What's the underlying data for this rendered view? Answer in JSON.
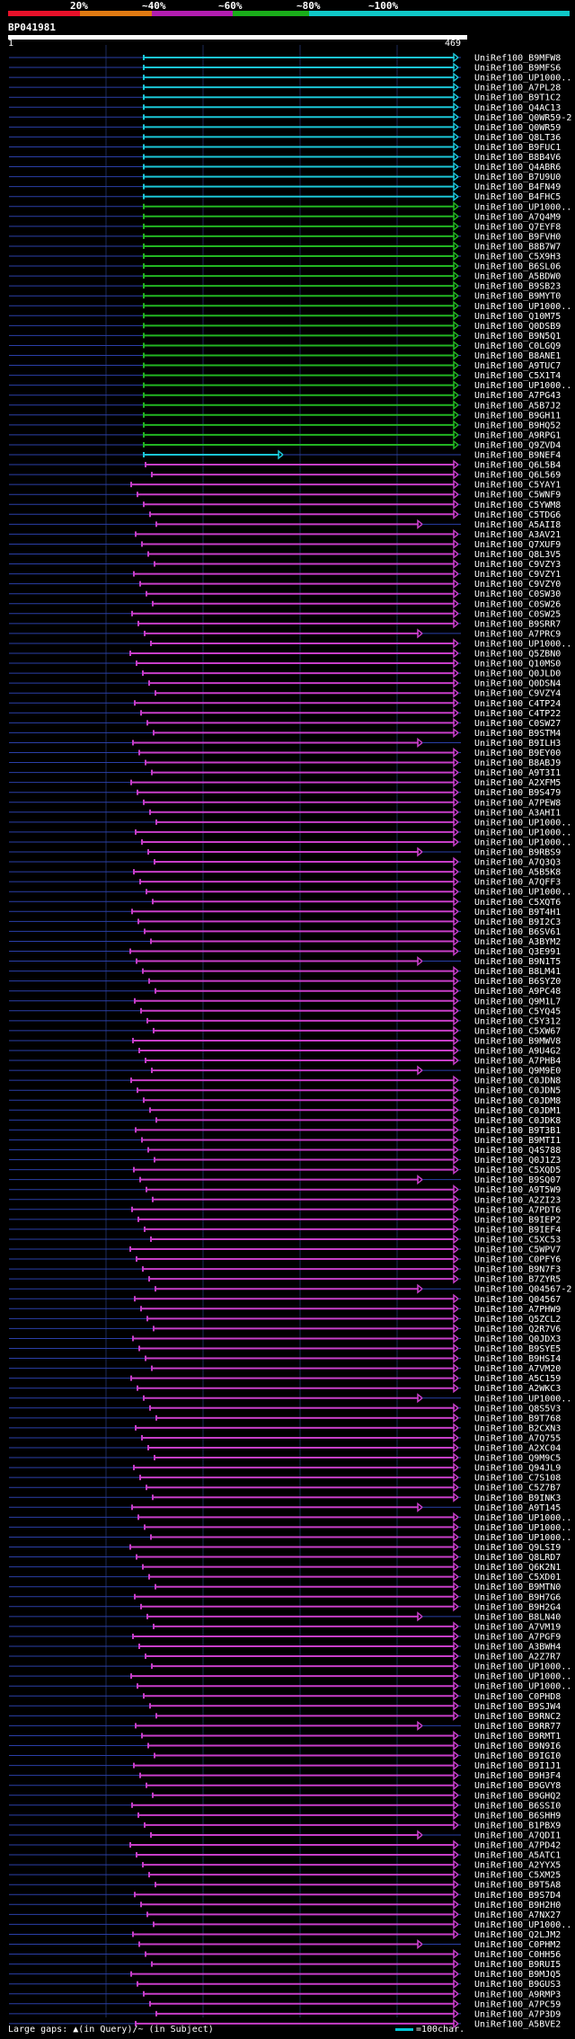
{
  "legend": {
    "percent_labels": [
      "20%",
      "~40%",
      "~60%",
      "~80%",
      "~100%"
    ],
    "colors": [
      "#e8112a",
      "#e07a12",
      "#b21eb0",
      "#1aad1a",
      "#0fc7c7"
    ]
  },
  "query": {
    "id": "BP041981",
    "start": "1",
    "end": "469"
  },
  "chart_data": {
    "type": "alignment-overview",
    "query_length": 469,
    "hit_colors": {
      "cyan": "#1bc5d6",
      "green": "#22b522",
      "magenta": "#c73ec8"
    },
    "hits": [
      {
        "label": "UniRef100_B9MFW8",
        "color": "cyan"
      },
      {
        "label": "UniRef100_B9MFS6",
        "color": "cyan"
      },
      {
        "label": "UniRef100_UP1000..",
        "color": "cyan"
      },
      {
        "label": "UniRef100_A7PL28",
        "color": "cyan"
      },
      {
        "label": "UniRef100_B9T1C2",
        "color": "cyan"
      },
      {
        "label": "UniRef100_Q4AC13",
        "color": "cyan"
      },
      {
        "label": "UniRef100_Q0WR59-2",
        "color": "cyan"
      },
      {
        "label": "UniRef100_Q0WR59",
        "color": "cyan"
      },
      {
        "label": "UniRef100_Q8LT36",
        "color": "cyan"
      },
      {
        "label": "UniRef100_B9FUC1",
        "color": "cyan"
      },
      {
        "label": "UniRef100_B8B4V6",
        "color": "cyan"
      },
      {
        "label": "UniRef100_Q4ABR6",
        "color": "cyan"
      },
      {
        "label": "UniRef100_B7U9U0",
        "color": "cyan"
      },
      {
        "label": "UniRef100_B4FN49",
        "color": "cyan"
      },
      {
        "label": "UniRef100_B4FHC5",
        "color": "cyan"
      },
      {
        "label": "UniRef100_UP1000..",
        "color": "green"
      },
      {
        "label": "UniRef100_A7Q4M9",
        "color": "green"
      },
      {
        "label": "UniRef100_Q7EYF8",
        "color": "green"
      },
      {
        "label": "UniRef100_B9FVH0",
        "color": "green"
      },
      {
        "label": "UniRef100_B8B7W7",
        "color": "green"
      },
      {
        "label": "UniRef100_C5X9H3",
        "color": "green"
      },
      {
        "label": "UniRef100_B6SL06",
        "color": "green"
      },
      {
        "label": "UniRef100_A5BDW0",
        "color": "green"
      },
      {
        "label": "UniRef100_B9SB23",
        "color": "green"
      },
      {
        "label": "UniRef100_B9MYT0",
        "color": "green"
      },
      {
        "label": "UniRef100_UP1000..",
        "color": "green"
      },
      {
        "label": "UniRef100_Q10M75",
        "color": "green"
      },
      {
        "label": "UniRef100_Q0DSB9",
        "color": "green"
      },
      {
        "label": "UniRef100_B9N5Q1",
        "color": "green"
      },
      {
        "label": "UniRef100_C0LGQ9",
        "color": "green"
      },
      {
        "label": "UniRef100_B8ANE1",
        "color": "green"
      },
      {
        "label": "UniRef100_A9TUC7",
        "color": "green"
      },
      {
        "label": "UniRef100_C5X1T4",
        "color": "green"
      },
      {
        "label": "UniRef100_UP1000..",
        "color": "green"
      },
      {
        "label": "UniRef100_A7PG43",
        "color": "green"
      },
      {
        "label": "UniRef100_A5B7J2",
        "color": "green"
      },
      {
        "label": "UniRef100_B9GH11",
        "color": "green"
      },
      {
        "label": "UniRef100_B9HQ52",
        "color": "green"
      },
      {
        "label": "UniRef100_A9RPG1",
        "color": "green"
      },
      {
        "label": "UniRef100_Q9ZVD4",
        "color": "green"
      },
      {
        "label": "UniRef100_B9NEF4",
        "color": "cyan"
      },
      {
        "label": "UniRef100_Q6L5B4",
        "color": "magenta"
      },
      {
        "label": "UniRef100_Q6L569",
        "color": "magenta"
      },
      {
        "label": "UniRef100_C5YAY1",
        "color": "magenta"
      },
      {
        "label": "UniRef100_C5WNF9",
        "color": "magenta"
      },
      {
        "label": "UniRef100_C5YWM8",
        "color": "magenta"
      },
      {
        "label": "UniRef100_C5TDG6",
        "color": "magenta"
      },
      {
        "label": "UniRef100_A5AII8",
        "color": "magenta"
      },
      {
        "label": "UniRef100_A3AV21",
        "color": "magenta"
      },
      {
        "label": "UniRef100_Q7XUF9",
        "color": "magenta"
      },
      {
        "label": "UniRef100_Q8L3V5",
        "color": "magenta"
      },
      {
        "label": "UniRef100_C9VZY3",
        "color": "magenta"
      },
      {
        "label": "UniRef100_C9VZY1",
        "color": "magenta"
      },
      {
        "label": "UniRef100_C9VZY0",
        "color": "magenta"
      },
      {
        "label": "UniRef100_C0SW30",
        "color": "magenta"
      },
      {
        "label": "UniRef100_C0SW26",
        "color": "magenta"
      },
      {
        "label": "UniRef100_C0SW25",
        "color": "magenta"
      },
      {
        "label": "UniRef100_B9SRR7",
        "color": "magenta"
      },
      {
        "label": "UniRef100_A7PRC9",
        "color": "magenta"
      },
      {
        "label": "UniRef100_UP1000..",
        "color": "magenta"
      },
      {
        "label": "UniRef100_Q5ZBN0",
        "color": "magenta"
      },
      {
        "label": "UniRef100_Q10MS0",
        "color": "magenta"
      },
      {
        "label": "UniRef100_Q0JLD0",
        "color": "magenta"
      },
      {
        "label": "UniRef100_Q0DSN4",
        "color": "magenta"
      },
      {
        "label": "UniRef100_C9VZY4",
        "color": "magenta"
      },
      {
        "label": "UniRef100_C4TP24",
        "color": "magenta"
      },
      {
        "label": "UniRef100_C4TP22",
        "color": "magenta"
      },
      {
        "label": "UniRef100_C0SW27",
        "color": "magenta"
      },
      {
        "label": "UniRef100_B9STM4",
        "color": "magenta"
      },
      {
        "label": "UniRef100_B9ILH3",
        "color": "magenta"
      },
      {
        "label": "UniRef100_B9EY00",
        "color": "magenta"
      },
      {
        "label": "UniRef100_B8ABJ9",
        "color": "magenta"
      },
      {
        "label": "UniRef100_A9T3I1",
        "color": "magenta"
      },
      {
        "label": "UniRef100_A2XFM5",
        "color": "magenta"
      },
      {
        "label": "UniRef100_B9S479",
        "color": "magenta"
      },
      {
        "label": "UniRef100_A7PEW8",
        "color": "magenta"
      },
      {
        "label": "UniRef100_A3AHI1",
        "color": "magenta"
      },
      {
        "label": "UniRef100_UP1000..",
        "color": "magenta"
      },
      {
        "label": "UniRef100_UP1000..",
        "color": "magenta"
      },
      {
        "label": "UniRef100_UP1000..",
        "color": "magenta"
      },
      {
        "label": "UniRef100_B9RBS9",
        "color": "magenta"
      },
      {
        "label": "UniRef100_A7Q3Q3",
        "color": "magenta"
      },
      {
        "label": "UniRef100_A5B5K8",
        "color": "magenta"
      },
      {
        "label": "UniRef100_A7QFF3",
        "color": "magenta"
      },
      {
        "label": "UniRef100_UP1000..",
        "color": "magenta"
      },
      {
        "label": "UniRef100_C5XQT6",
        "color": "magenta"
      },
      {
        "label": "UniRef100_B9T4H1",
        "color": "magenta"
      },
      {
        "label": "UniRef100_B9I2C3",
        "color": "magenta"
      },
      {
        "label": "UniRef100_B6SV61",
        "color": "magenta"
      },
      {
        "label": "UniRef100_A3BYM2",
        "color": "magenta"
      },
      {
        "label": "UniRef100_Q3E991",
        "color": "magenta"
      },
      {
        "label": "UniRef100_B9N1T5",
        "color": "magenta"
      },
      {
        "label": "UniRef100_B8LM41",
        "color": "magenta"
      },
      {
        "label": "UniRef100_B6SYZ0",
        "color": "magenta"
      },
      {
        "label": "UniRef100_A9PC48",
        "color": "magenta"
      },
      {
        "label": "UniRef100_Q9M1L7",
        "color": "magenta"
      },
      {
        "label": "UniRef100_C5YQ45",
        "color": "magenta"
      },
      {
        "label": "UniRef100_C5Y312",
        "color": "magenta"
      },
      {
        "label": "UniRef100_C5XW67",
        "color": "magenta"
      },
      {
        "label": "UniRef100_B9MWV8",
        "color": "magenta"
      },
      {
        "label": "UniRef100_A9U4G2",
        "color": "magenta"
      },
      {
        "label": "UniRef100_A7PHB4",
        "color": "magenta"
      },
      {
        "label": "UniRef100_Q9M9E0",
        "color": "magenta"
      },
      {
        "label": "UniRef100_C0JDN8",
        "color": "magenta"
      },
      {
        "label": "UniRef100_C0JDN5",
        "color": "magenta"
      },
      {
        "label": "UniRef100_C0JDM8",
        "color": "magenta"
      },
      {
        "label": "UniRef100_C0JDM1",
        "color": "magenta"
      },
      {
        "label": "UniRef100_C0JDK8",
        "color": "magenta"
      },
      {
        "label": "UniRef100_B9T3B1",
        "color": "magenta"
      },
      {
        "label": "UniRef100_B9MTI1",
        "color": "magenta"
      },
      {
        "label": "UniRef100_Q4S788",
        "color": "magenta"
      },
      {
        "label": "UniRef100_Q0J1Z3",
        "color": "magenta"
      },
      {
        "label": "UniRef100_C5XQD5",
        "color": "magenta"
      },
      {
        "label": "UniRef100_B9SQ07",
        "color": "magenta"
      },
      {
        "label": "UniRef100_A9T5W9",
        "color": "magenta"
      },
      {
        "label": "UniRef100_A2ZI23",
        "color": "magenta"
      },
      {
        "label": "UniRef100_A7PDT6",
        "color": "magenta"
      },
      {
        "label": "UniRef100_B9IEP2",
        "color": "magenta"
      },
      {
        "label": "UniRef100_B9IEF4",
        "color": "magenta"
      },
      {
        "label": "UniRef100_C5XC53",
        "color": "magenta"
      },
      {
        "label": "UniRef100_C5WPV7",
        "color": "magenta"
      },
      {
        "label": "UniRef100_C0PFY6",
        "color": "magenta"
      },
      {
        "label": "UniRef100_B9N7F3",
        "color": "magenta"
      },
      {
        "label": "UniRef100_B7ZYR5",
        "color": "magenta"
      },
      {
        "label": "UniRef100_Q04567-2",
        "color": "magenta"
      },
      {
        "label": "UniRef100_Q04567",
        "color": "magenta"
      },
      {
        "label": "UniRef100_A7PHW9",
        "color": "magenta"
      },
      {
        "label": "UniRef100_Q5ZCL2",
        "color": "magenta"
      },
      {
        "label": "UniRef100_Q2R7V6",
        "color": "magenta"
      },
      {
        "label": "UniRef100_Q0JDX3",
        "color": "magenta"
      },
      {
        "label": "UniRef100_B9SYE5",
        "color": "magenta"
      },
      {
        "label": "UniRef100_B9HSI4",
        "color": "magenta"
      },
      {
        "label": "UniRef100_A7VM20",
        "color": "magenta"
      },
      {
        "label": "UniRef100_A5C159",
        "color": "magenta"
      },
      {
        "label": "UniRef100_A2WKC3",
        "color": "magenta"
      },
      {
        "label": "UniRef100_UP1000..",
        "color": "magenta"
      },
      {
        "label": "UniRef100_Q8S5V3",
        "color": "magenta"
      },
      {
        "label": "UniRef100_B9T768",
        "color": "magenta"
      },
      {
        "label": "UniRef100_B2CXN3",
        "color": "magenta"
      },
      {
        "label": "UniRef100_A7Q755",
        "color": "magenta"
      },
      {
        "label": "UniRef100_A2XC04",
        "color": "magenta"
      },
      {
        "label": "UniRef100_Q9M9C5",
        "color": "magenta"
      },
      {
        "label": "UniRef100_Q94JL9",
        "color": "magenta"
      },
      {
        "label": "UniRef100_C7S108",
        "color": "magenta"
      },
      {
        "label": "UniRef100_C5Z7B7",
        "color": "magenta"
      },
      {
        "label": "UniRef100_B9INK3",
        "color": "magenta"
      },
      {
        "label": "UniRef100_A9T145",
        "color": "magenta"
      },
      {
        "label": "UniRef100_UP1000..",
        "color": "magenta"
      },
      {
        "label": "UniRef100_UP1000..",
        "color": "magenta"
      },
      {
        "label": "UniRef100_UP1000..",
        "color": "magenta"
      },
      {
        "label": "UniRef100_Q9LSI9",
        "color": "magenta"
      },
      {
        "label": "UniRef100_Q8LRD7",
        "color": "magenta"
      },
      {
        "label": "UniRef100_Q6K2N1",
        "color": "magenta"
      },
      {
        "label": "UniRef100_C5XD01",
        "color": "magenta"
      },
      {
        "label": "UniRef100_B9MTN0",
        "color": "magenta"
      },
      {
        "label": "UniRef100_B9H7G6",
        "color": "magenta"
      },
      {
        "label": "UniRef100_B9H2G4",
        "color": "magenta"
      },
      {
        "label": "UniRef100_B8LN40",
        "color": "magenta"
      },
      {
        "label": "UniRef100_A7VM19",
        "color": "magenta"
      },
      {
        "label": "UniRef100_A7PGF9",
        "color": "magenta"
      },
      {
        "label": "UniRef100_A3BWH4",
        "color": "magenta"
      },
      {
        "label": "UniRef100_A2Z7R7",
        "color": "magenta"
      },
      {
        "label": "UniRef100_UP1000..",
        "color": "magenta"
      },
      {
        "label": "UniRef100_UP1000..",
        "color": "magenta"
      },
      {
        "label": "UniRef100_UP1000..",
        "color": "magenta"
      },
      {
        "label": "UniRef100_C0PHD8",
        "color": "magenta"
      },
      {
        "label": "UniRef100_B9SJW4",
        "color": "magenta"
      },
      {
        "label": "UniRef100_B9RNC2",
        "color": "magenta"
      },
      {
        "label": "UniRef100_B9RR77",
        "color": "magenta"
      },
      {
        "label": "UniRef100_B9RMT1",
        "color": "magenta"
      },
      {
        "label": "UniRef100_B9N9I6",
        "color": "magenta"
      },
      {
        "label": "UniRef100_B9IGI0",
        "color": "magenta"
      },
      {
        "label": "UniRef100_B9I1J1",
        "color": "magenta"
      },
      {
        "label": "UniRef100_B9H3F4",
        "color": "magenta"
      },
      {
        "label": "UniRef100_B9GVY8",
        "color": "magenta"
      },
      {
        "label": "UniRef100_B9GHQ2",
        "color": "magenta"
      },
      {
        "label": "UniRef100_B6SSI0",
        "color": "magenta"
      },
      {
        "label": "UniRef100_B6SHH9",
        "color": "magenta"
      },
      {
        "label": "UniRef100_B1PBX9",
        "color": "magenta"
      },
      {
        "label": "UniRef100_A7QDI1",
        "color": "magenta"
      },
      {
        "label": "UniRef100_A7PD42",
        "color": "magenta"
      },
      {
        "label": "UniRef100_A5ATC1",
        "color": "magenta"
      },
      {
        "label": "UniRef100_A2YYX5",
        "color": "magenta"
      },
      {
        "label": "UniRef100_C5XM25",
        "color": "magenta"
      },
      {
        "label": "UniRef100_B9T5A8",
        "color": "magenta"
      },
      {
        "label": "UniRef100_B9S7D4",
        "color": "magenta"
      },
      {
        "label": "UniRef100_B9H2H0",
        "color": "magenta"
      },
      {
        "label": "UniRef100_A7NX27",
        "color": "magenta"
      },
      {
        "label": "UniRef100_UP1000..",
        "color": "magenta"
      },
      {
        "label": "UniRef100_Q2LJM2",
        "color": "magenta"
      },
      {
        "label": "UniRef100_C0PHM2",
        "color": "magenta"
      },
      {
        "label": "UniRef100_C0HH56",
        "color": "magenta"
      },
      {
        "label": "UniRef100_B9RUI5",
        "color": "magenta"
      },
      {
        "label": "UniRef100_B9MJQ5",
        "color": "magenta"
      },
      {
        "label": "UniRef100_B9GUS3",
        "color": "magenta"
      },
      {
        "label": "UniRef100_A9RMP3",
        "color": "magenta"
      },
      {
        "label": "UniRef100_A7PC59",
        "color": "magenta"
      },
      {
        "label": "UniRef100_A7P3D9",
        "color": "magenta"
      },
      {
        "label": "UniRef100_A5BVE2",
        "color": "magenta"
      }
    ]
  },
  "footer": {
    "gaps_text": "Large gaps: ▲(in Query)/~ (in Subject)",
    "scale_text": "=100char."
  }
}
